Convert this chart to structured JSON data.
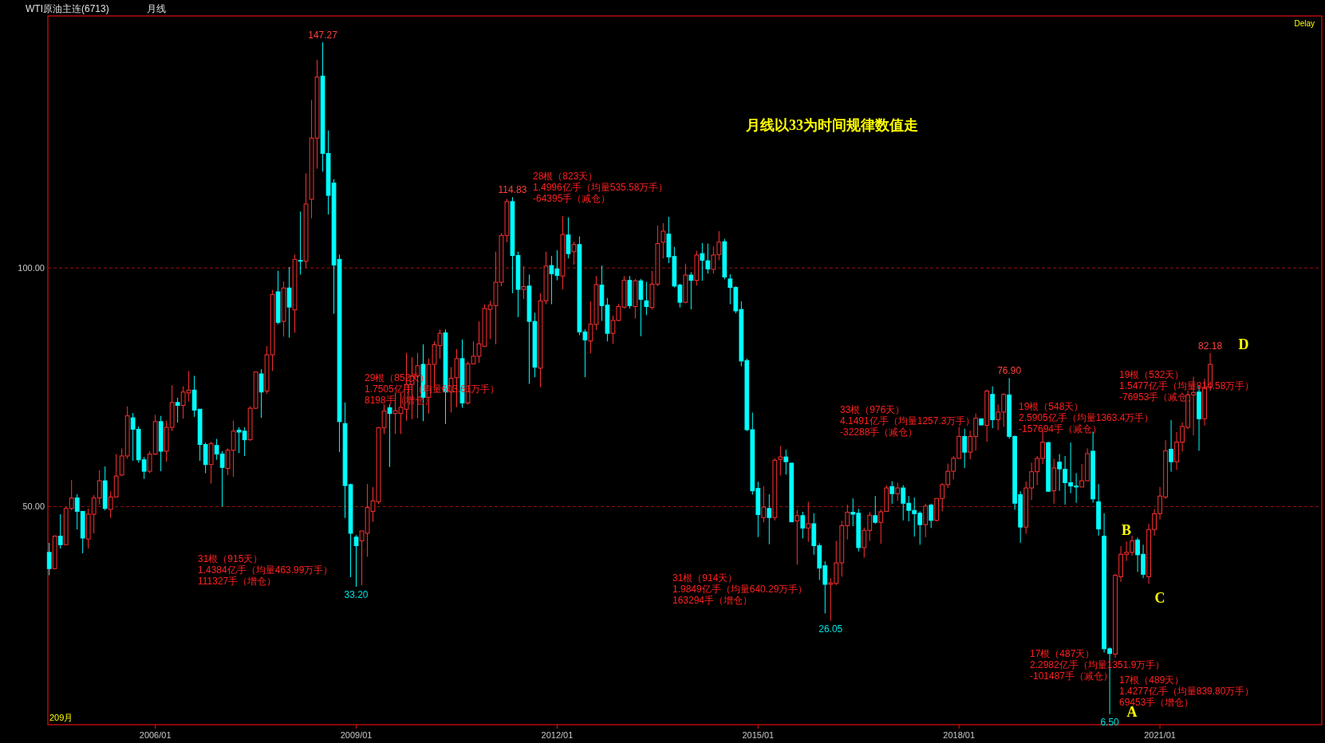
{
  "chart_data": {
    "type": "candlestick",
    "title": "WTI原油主连(6713)",
    "subtitle": "月线",
    "x": [
      "2004-06",
      "2004-07",
      "2004-08",
      "2004-09",
      "2004-10",
      "2004-11",
      "2004-12",
      "2005-01",
      "2005-02",
      "2005-03",
      "2005-04",
      "2005-05",
      "2005-06",
      "2005-07",
      "2005-08",
      "2005-09",
      "2005-10",
      "2005-11",
      "2005-12",
      "2006-01",
      "2006-02",
      "2006-03",
      "2006-04",
      "2006-05",
      "2006-06",
      "2006-07",
      "2006-08",
      "2006-09",
      "2006-10",
      "2006-11",
      "2006-12",
      "2007-01",
      "2007-02",
      "2007-03",
      "2007-04",
      "2007-05",
      "2007-06",
      "2007-07",
      "2007-08",
      "2007-09",
      "2007-10",
      "2007-11",
      "2007-12",
      "2008-01",
      "2008-02",
      "2008-03",
      "2008-04",
      "2008-05",
      "2008-06",
      "2008-07",
      "2008-08",
      "2008-09",
      "2008-10",
      "2008-11",
      "2008-12",
      "2009-01",
      "2009-02",
      "2009-03",
      "2009-04",
      "2009-05",
      "2009-06",
      "2009-07",
      "2009-08",
      "2009-09",
      "2009-10",
      "2009-11",
      "2009-12",
      "2010-01",
      "2010-02",
      "2010-03",
      "2010-04",
      "2010-05",
      "2010-06",
      "2010-07",
      "2010-08",
      "2010-09",
      "2010-10",
      "2010-11",
      "2010-12",
      "2011-01",
      "2011-02",
      "2011-03",
      "2011-04",
      "2011-05",
      "2011-06",
      "2011-07",
      "2011-08",
      "2011-09",
      "2011-10",
      "2011-11",
      "2011-12",
      "2012-01",
      "2012-02",
      "2012-03",
      "2012-04",
      "2012-05",
      "2012-06",
      "2012-07",
      "2012-08",
      "2012-09",
      "2012-10",
      "2012-11",
      "2012-12",
      "2013-01",
      "2013-02",
      "2013-03",
      "2013-04",
      "2013-05",
      "2013-06",
      "2013-07",
      "2013-08",
      "2013-09",
      "2013-10",
      "2013-11",
      "2013-12",
      "2014-01",
      "2014-02",
      "2014-03",
      "2014-04",
      "2014-05",
      "2014-06",
      "2014-07",
      "2014-08",
      "2014-09",
      "2014-10",
      "2014-11",
      "2014-12",
      "2015-01",
      "2015-02",
      "2015-03",
      "2015-04",
      "2015-05",
      "2015-06",
      "2015-07",
      "2015-08",
      "2015-09",
      "2015-10",
      "2015-11",
      "2015-12",
      "2016-01",
      "2016-02",
      "2016-03",
      "2016-04",
      "2016-05",
      "2016-06",
      "2016-07",
      "2016-08",
      "2016-09",
      "2016-10",
      "2016-11",
      "2016-12",
      "2017-01",
      "2017-02",
      "2017-03",
      "2017-04",
      "2017-05",
      "2017-06",
      "2017-07",
      "2017-08",
      "2017-09",
      "2017-10",
      "2017-11",
      "2017-12",
      "2018-01",
      "2018-02",
      "2018-03",
      "2018-04",
      "2018-05",
      "2018-06",
      "2018-07",
      "2018-08",
      "2018-09",
      "2018-10",
      "2018-11",
      "2018-12",
      "2019-01",
      "2019-02",
      "2019-03",
      "2019-04",
      "2019-05",
      "2019-06",
      "2019-07",
      "2019-08",
      "2019-09",
      "2019-10",
      "2019-11",
      "2019-12",
      "2020-01",
      "2020-02",
      "2020-03",
      "2020-04",
      "2020-05",
      "2020-06",
      "2020-07",
      "2020-08",
      "2020-09",
      "2020-10",
      "2020-11",
      "2020-12",
      "2021-01",
      "2021-02",
      "2021-03",
      "2021-04",
      "2021-05",
      "2021-06",
      "2021-07",
      "2021-08",
      "2021-09",
      "2021-10"
    ],
    "ohlc": [
      [
        40.4,
        42.4,
        35.6,
        37.0
      ],
      [
        37.0,
        44.0,
        36.8,
        43.8
      ],
      [
        43.8,
        48.4,
        41.2,
        42.0
      ],
      [
        42.0,
        50.0,
        42.0,
        49.6
      ],
      [
        49.6,
        55.6,
        49.2,
        51.8
      ],
      [
        51.8,
        52.6,
        45.2,
        49.0
      ],
      [
        49.0,
        49.0,
        40.2,
        43.4
      ],
      [
        43.2,
        49.6,
        41.2,
        48.4
      ],
      [
        48.4,
        52.4,
        44.4,
        51.8
      ],
      [
        51.8,
        57.6,
        50.4,
        55.4
      ],
      [
        55.4,
        58.4,
        49.2,
        49.6
      ],
      [
        49.4,
        53.2,
        47.6,
        52.0
      ],
      [
        52.0,
        61.0,
        52.0,
        56.4
      ],
      [
        56.6,
        62.2,
        56.4,
        60.6
      ],
      [
        60.6,
        71.0,
        60.0,
        69.0
      ],
      [
        68.6,
        69.6,
        59.6,
        66.2
      ],
      [
        66.2,
        66.8,
        59.2,
        59.8
      ],
      [
        59.8,
        60.4,
        55.8,
        57.4
      ],
      [
        57.4,
        61.6,
        57.0,
        61.0
      ],
      [
        61.0,
        69.2,
        60.8,
        67.8
      ],
      [
        67.8,
        69.0,
        57.4,
        61.6
      ],
      [
        61.6,
        68.0,
        59.4,
        66.6
      ],
      [
        66.6,
        75.4,
        65.8,
        71.8
      ],
      [
        71.8,
        72.8,
        67.6,
        71.2
      ],
      [
        71.2,
        75.2,
        68.4,
        74.0
      ],
      [
        73.8,
        78.4,
        72.0,
        74.4
      ],
      [
        74.4,
        77.4,
        68.8,
        70.2
      ],
      [
        70.4,
        70.4,
        59.6,
        63.0
      ],
      [
        63.0,
        63.4,
        57.0,
        58.8
      ],
      [
        58.8,
        63.6,
        54.8,
        63.2
      ],
      [
        62.8,
        64.2,
        59.8,
        61.0
      ],
      [
        61.0,
        61.6,
        50.0,
        58.2
      ],
      [
        58.0,
        62.2,
        56.6,
        61.8
      ],
      [
        61.8,
        68.0,
        56.2,
        65.8
      ],
      [
        66.0,
        66.6,
        61.2,
        65.6
      ],
      [
        65.8,
        66.6,
        60.6,
        64.0
      ],
      [
        64.0,
        71.0,
        63.8,
        70.6
      ],
      [
        70.6,
        78.2,
        70.4,
        78.2
      ],
      [
        77.8,
        78.8,
        68.6,
        74.0
      ],
      [
        74.2,
        83.6,
        73.6,
        81.8
      ],
      [
        81.8,
        95.4,
        78.4,
        94.4
      ],
      [
        95.0,
        99.4,
        88.2,
        88.6
      ],
      [
        88.8,
        97.2,
        85.6,
        95.8
      ],
      [
        95.8,
        100.2,
        85.4,
        91.8
      ],
      [
        91.2,
        102.8,
        86.4,
        101.8
      ],
      [
        101.6,
        111.8,
        98.6,
        101.4
      ],
      [
        101.4,
        119.8,
        100.0,
        113.4
      ],
      [
        114.4,
        135.2,
        110.4,
        127.2
      ],
      [
        127.2,
        143.6,
        120.8,
        140.0
      ],
      [
        140.2,
        147.27,
        120.2,
        124.0
      ],
      [
        124.0,
        128.8,
        111.2,
        115.2
      ],
      [
        117.8,
        118.6,
        90.4,
        100.6
      ],
      [
        101.8,
        102.8,
        61.4,
        67.8
      ],
      [
        67.4,
        71.8,
        47.6,
        54.4
      ],
      [
        54.6,
        54.8,
        35.2,
        44.4
      ],
      [
        43.6,
        44.0,
        33.2,
        41.8
      ],
      [
        42.8,
        44.9,
        33.5,
        44.9
      ],
      [
        44.4,
        54.7,
        39.5,
        49.8
      ],
      [
        49.0,
        54.1,
        46.8,
        51.2
      ],
      [
        51.0,
        66.7,
        50.5,
        66.5
      ],
      [
        66.5,
        71.4,
        65.2,
        70.0
      ],
      [
        70.7,
        71.4,
        58.3,
        69.5
      ],
      [
        69.5,
        73.8,
        65.2,
        70.1
      ],
      [
        69.5,
        73.8,
        65.2,
        70.8
      ],
      [
        70.4,
        82.2,
        68.0,
        75.6
      ],
      [
        75.6,
        81.3,
        68.3,
        77.4
      ],
      [
        77.4,
        82.2,
        68.5,
        79.5
      ],
      [
        79.8,
        84.0,
        67.9,
        72.9
      ],
      [
        72.9,
        81.0,
        69.5,
        79.8
      ],
      [
        79.8,
        84.6,
        75.0,
        83.9
      ],
      [
        83.7,
        87.1,
        81.0,
        86.3
      ],
      [
        86.4,
        87.1,
        67.3,
        74.0
      ],
      [
        74.0,
        79.2,
        69.7,
        76.9
      ],
      [
        77.0,
        83.0,
        70.8,
        81.0
      ],
      [
        81.0,
        85.0,
        70.7,
        71.7
      ],
      [
        71.7,
        80.4,
        71.4,
        79.9
      ],
      [
        79.9,
        84.6,
        79.8,
        81.5
      ],
      [
        81.5,
        88.8,
        80.1,
        84.1
      ],
      [
        83.6,
        92.4,
        83.4,
        91.5
      ],
      [
        91.3,
        93.1,
        85.1,
        92.2
      ],
      [
        92.1,
        103.4,
        84.0,
        97.0
      ],
      [
        97.0,
        107.3,
        96.2,
        106.8
      ],
      [
        106.8,
        114.5,
        105.4,
        113.9
      ],
      [
        113.9,
        114.83,
        94.7,
        102.6
      ],
      [
        102.6,
        103.4,
        89.7,
        95.5
      ],
      [
        95.5,
        100.4,
        93.5,
        96.1
      ],
      [
        96.2,
        98.6,
        75.7,
        88.8
      ],
      [
        88.8,
        90.6,
        77.1,
        79.2
      ],
      [
        79.0,
        94.7,
        75.0,
        93.1
      ],
      [
        93.1,
        103.4,
        92.4,
        100.4
      ],
      [
        100.5,
        102.5,
        92.4,
        98.8
      ],
      [
        99.8,
        103.7,
        97.4,
        98.4
      ],
      [
        98.3,
        110.9,
        95.5,
        107.0
      ],
      [
        106.9,
        110.6,
        102.0,
        103.0
      ],
      [
        103.4,
        105.5,
        100.7,
        104.9
      ],
      [
        104.9,
        106.6,
        85.9,
        86.6
      ],
      [
        86.6,
        87.1,
        77.1,
        84.9
      ],
      [
        84.7,
        93.0,
        82.1,
        88.2
      ],
      [
        88.2,
        98.3,
        87.0,
        96.5
      ],
      [
        96.4,
        100.5,
        88.9,
        92.1
      ],
      [
        92.2,
        93.7,
        84.6,
        86.3
      ],
      [
        86.3,
        90.0,
        84.1,
        89.0
      ],
      [
        89.0,
        92.5,
        88.8,
        91.9
      ],
      [
        91.8,
        98.3,
        91.5,
        97.4
      ],
      [
        97.4,
        98.3,
        91.5,
        92.1
      ],
      [
        91.9,
        97.7,
        89.4,
        97.3
      ],
      [
        97.3,
        97.7,
        85.7,
        93.4
      ],
      [
        93.1,
        97.1,
        90.1,
        91.9
      ],
      [
        91.7,
        99.4,
        91.3,
        96.6
      ],
      [
        96.6,
        108.9,
        96.2,
        105.1
      ],
      [
        105.4,
        109.4,
        102.0,
        107.7
      ],
      [
        107.1,
        110.7,
        101.0,
        102.3
      ],
      [
        102.4,
        104.4,
        95.9,
        96.2
      ],
      [
        96.4,
        96.7,
        91.7,
        92.8
      ],
      [
        92.8,
        100.9,
        92.6,
        98.5
      ],
      [
        98.5,
        99.1,
        91.3,
        97.4
      ],
      [
        97.4,
        103.6,
        96.3,
        102.7
      ],
      [
        103.0,
        105.2,
        97.3,
        101.6
      ],
      [
        101.5,
        105.1,
        98.8,
        99.8
      ],
      [
        99.7,
        104.5,
        98.8,
        102.7
      ],
      [
        102.8,
        107.7,
        101.6,
        105.4
      ],
      [
        105.5,
        106.1,
        97.6,
        98.1
      ],
      [
        97.7,
        98.7,
        92.4,
        95.9
      ],
      [
        95.9,
        96.2,
        90.5,
        91.0
      ],
      [
        91.3,
        93.0,
        79.4,
        80.5
      ],
      [
        80.6,
        81.0,
        65.8,
        66.1
      ],
      [
        66.1,
        69.7,
        52.5,
        53.3
      ],
      [
        53.8,
        55.2,
        43.6,
        48.3
      ],
      [
        47.7,
        54.3,
        46.7,
        49.9
      ],
      [
        49.6,
        52.6,
        42.1,
        47.7
      ],
      [
        47.7,
        60.1,
        47.1,
        59.7
      ],
      [
        59.9,
        62.7,
        56.5,
        60.4
      ],
      [
        60.4,
        61.9,
        56.7,
        59.4
      ],
      [
        59.1,
        59.1,
        46.8,
        46.8
      ],
      [
        47.0,
        49.3,
        37.8,
        48.1
      ],
      [
        48.1,
        48.9,
        43.3,
        45.5
      ],
      [
        45.5,
        51.0,
        42.6,
        46.4
      ],
      [
        46.4,
        48.6,
        39.9,
        41.8
      ],
      [
        41.8,
        42.3,
        34.6,
        37.1
      ],
      [
        37.6,
        38.5,
        27.6,
        33.7
      ],
      [
        33.7,
        35.0,
        26.05,
        34.0
      ],
      [
        33.9,
        42.8,
        33.5,
        38.2
      ],
      [
        38.2,
        47.0,
        35.3,
        46.0
      ],
      [
        46.0,
        50.4,
        43.1,
        48.8
      ],
      [
        48.8,
        51.7,
        45.9,
        48.4
      ],
      [
        48.6,
        49.5,
        40.6,
        41.4
      ],
      [
        41.4,
        45.6,
        39.3,
        45.0
      ],
      [
        45.0,
        48.9,
        42.8,
        48.2
      ],
      [
        48.1,
        52.2,
        46.4,
        46.7
      ],
      [
        46.7,
        49.4,
        42.2,
        48.9
      ],
      [
        49.0,
        54.5,
        48.9,
        53.9
      ],
      [
        54.2,
        55.3,
        50.6,
        52.7
      ],
      [
        52.7,
        55.0,
        51.2,
        53.9
      ],
      [
        53.9,
        54.5,
        47.1,
        50.7
      ],
      [
        50.7,
        52.2,
        46.9,
        49.2
      ],
      [
        49.2,
        51.9,
        43.7,
        48.5
      ],
      [
        48.6,
        49.0,
        42.0,
        46.2
      ],
      [
        46.2,
        50.6,
        43.6,
        50.1
      ],
      [
        50.3,
        50.6,
        45.5,
        47.1
      ],
      [
        47.1,
        51.7,
        46.9,
        51.7
      ],
      [
        51.7,
        54.9,
        49.0,
        54.6
      ],
      [
        54.6,
        59.0,
        53.9,
        57.4
      ],
      [
        57.4,
        60.6,
        55.7,
        60.1
      ],
      [
        60.1,
        66.7,
        60.0,
        64.7
      ],
      [
        64.7,
        66.3,
        58.1,
        61.4
      ],
      [
        61.4,
        65.9,
        59.9,
        64.7
      ],
      [
        64.7,
        69.5,
        61.7,
        68.5
      ],
      [
        68.4,
        68.4,
        67.0,
        67.1
      ],
      [
        67.0,
        74.5,
        63.6,
        74.2
      ],
      [
        73.5,
        75.2,
        66.4,
        68.2
      ],
      [
        68.2,
        71.4,
        66.0,
        69.8
      ],
      [
        69.8,
        73.8,
        66.7,
        73.5
      ],
      [
        73.4,
        76.9,
        64.2,
        64.7
      ],
      [
        64.7,
        64.9,
        49.3,
        50.7
      ],
      [
        52.5,
        53.2,
        42.4,
        45.7
      ],
      [
        45.7,
        55.3,
        44.3,
        53.9
      ],
      [
        53.9,
        59.2,
        51.4,
        57.3
      ],
      [
        57.3,
        60.6,
        54.5,
        60.1
      ],
      [
        60.1,
        65.9,
        58.9,
        63.5
      ],
      [
        63.4,
        63.6,
        53.1,
        53.2
      ],
      [
        53.3,
        60.0,
        50.6,
        58.1
      ],
      [
        59.3,
        61.0,
        53.3,
        57.9
      ],
      [
        57.8,
        60.6,
        50.4,
        55.0
      ],
      [
        55.0,
        63.4,
        52.8,
        54.3
      ],
      [
        54.3,
        57.0,
        50.8,
        54.1
      ],
      [
        54.1,
        58.9,
        54.1,
        55.4
      ],
      [
        55.4,
        62.2,
        55.3,
        61.1
      ],
      [
        61.6,
        65.7,
        50.8,
        51.6
      ],
      [
        51.0,
        54.7,
        43.9,
        45.3
      ],
      [
        43.8,
        48.6,
        19.4,
        20.2
      ],
      [
        20.2,
        20.5,
        6.5,
        19.2
      ],
      [
        19.1,
        35.9,
        18.3,
        35.6
      ],
      [
        35.3,
        41.7,
        34.2,
        40.0
      ],
      [
        40.0,
        42.7,
        38.6,
        40.4
      ],
      [
        40.4,
        43.9,
        39.7,
        42.8
      ],
      [
        43.0,
        43.5,
        36.3,
        39.9
      ],
      [
        40.0,
        42.0,
        35.0,
        35.8
      ],
      [
        35.3,
        46.4,
        33.8,
        45.2
      ],
      [
        45.2,
        49.5,
        43.9,
        48.5
      ],
      [
        48.5,
        54.1,
        47.3,
        52.2
      ],
      [
        52.0,
        63.9,
        51.6,
        61.7
      ],
      [
        62.0,
        68.1,
        57.3,
        59.4
      ],
      [
        59.4,
        65.6,
        57.7,
        63.5
      ],
      [
        63.5,
        67.6,
        61.5,
        66.8
      ],
      [
        66.6,
        74.3,
        66.2,
        73.4
      ],
      [
        73.4,
        77.2,
        64.9,
        73.9
      ],
      [
        74.0,
        75.4,
        61.7,
        68.4
      ],
      [
        68.4,
        76.8,
        67.0,
        75.0
      ],
      [
        75.0,
        82.18,
        74.3,
        79.8
      ]
    ],
    "colors": [
      "#00ffff",
      "#ff3232",
      "#00ffff",
      "#ff3232",
      "#ff3232",
      "#00ffff",
      "#00ffff",
      "#ff3232",
      "#ff3232",
      "#ff3232",
      "#00ffff",
      "#ff3232",
      "#ff3232",
      "#ff3232",
      "#ff3232",
      "#00ffff",
      "#00ffff",
      "#00ffff",
      "#ff3232",
      "#ff3232",
      "#00ffff",
      "#ff3232",
      "#ff3232",
      "#00ffff",
      "#ff3232",
      "#ff3232",
      "#00ffff",
      "#00ffff",
      "#00ffff",
      "#ff3232",
      "#00ffff",
      "#00ffff",
      "#ff3232",
      "#ff3232",
      "#00ffff",
      "#00ffff",
      "#ff3232",
      "#ff3232",
      "#00ffff",
      "#ff3232",
      "#ff3232",
      "#00ffff",
      "#ff3232",
      "#00ffff",
      "#ff3232",
      "#00ffff",
      "#ff3232",
      "#ff3232",
      "#ff3232",
      "#00ffff",
      "#00ffff",
      "#00ffff",
      "#00ffff",
      "#00ffff",
      "#00ffff",
      "#00ffff",
      "#ff3232",
      "#ff3232",
      "#ff3232",
      "#ff3232",
      "#ff3232",
      "#00ffff",
      "#ff3232",
      "#ff3232",
      "#ff3232",
      "#ff3232",
      "#ff3232",
      "#00ffff",
      "#ff3232",
      "#ff3232",
      "#ff3232",
      "#00ffff",
      "#ff3232",
      "#ff3232",
      "#00ffff",
      "#ff3232",
      "#ff3232",
      "#ff3232",
      "#ff3232",
      "#ff3232",
      "#ff3232",
      "#ff3232",
      "#ff3232",
      "#00ffff",
      "#00ffff",
      "#ff3232",
      "#00ffff",
      "#00ffff",
      "#ff3232",
      "#ff3232",
      "#00ffff",
      "#00ffff",
      "#ff3232",
      "#00ffff",
      "#ff3232",
      "#00ffff",
      "#00ffff",
      "#ff3232",
      "#ff3232",
      "#00ffff",
      "#00ffff",
      "#ff3232",
      "#ff3232",
      "#ff3232",
      "#00ffff",
      "#ff3232",
      "#00ffff",
      "#00ffff",
      "#ff3232",
      "#ff3232",
      "#ff3232",
      "#00ffff",
      "#00ffff",
      "#00ffff",
      "#ff3232",
      "#00ffff",
      "#ff3232",
      "#00ffff",
      "#00ffff",
      "#ff3232",
      "#ff3232",
      "#00ffff",
      "#00ffff",
      "#00ffff",
      "#00ffff",
      "#00ffff",
      "#00ffff",
      "#00ffff",
      "#ff3232",
      "#00ffff",
      "#ff3232",
      "#ff3232",
      "#00ffff",
      "#00ffff",
      "#ff3232",
      "#00ffff",
      "#ff3232",
      "#00ffff",
      "#00ffff",
      "#00ffff",
      "#ff3232",
      "#ff3232",
      "#ff3232",
      "#ff3232",
      "#00ffff",
      "#00ffff",
      "#ff3232",
      "#ff3232",
      "#00ffff",
      "#ff3232",
      "#ff3232",
      "#00ffff",
      "#ff3232",
      "#00ffff",
      "#00ffff",
      "#00ffff",
      "#00ffff",
      "#ff3232",
      "#00ffff",
      "#ff3232",
      "#ff3232",
      "#ff3232",
      "#ff3232",
      "#ff3232",
      "#00ffff",
      "#ff3232",
      "#ff3232",
      "#00ffff",
      "#ff3232",
      "#00ffff",
      "#ff3232",
      "#ff3232",
      "#00ffff",
      "#00ffff",
      "#00ffff",
      "#ff3232",
      "#ff3232",
      "#ff3232",
      "#ff3232",
      "#00ffff",
      "#ff3232",
      "#00ffff",
      "#00ffff",
      "#00ffff",
      "#00ffff",
      "#ff3232",
      "#ff3232",
      "#00ffff",
      "#00ffff",
      "#00ffff",
      "#00ffff",
      "#ff3232",
      "#ff3232",
      "#ff3232",
      "#ff3232",
      "#00ffff",
      "#00ffff",
      "#ff3232",
      "#ff3232",
      "#ff3232",
      "#ff3232",
      "#00ffff",
      "#ff3232",
      "#ff3232",
      "#ff3232",
      "#ff3232",
      "#00ffff",
      "#ff3232",
      "#ff3232"
    ],
    "xlim": [
      "2004-05-24",
      "2023-06"
    ],
    "ylim": [
      4.3,
      152.8
    ],
    "xticks": [
      {
        "value": "2006-01",
        "label": "2006/01"
      },
      {
        "value": "2009-01",
        "label": "2009/01"
      },
      {
        "value": "2012-01",
        "label": "2012/01"
      },
      {
        "value": "2015-01",
        "label": "2015/01"
      },
      {
        "value": "2018-01",
        "label": "2018/01"
      },
      {
        "value": "2021-01",
        "label": "2021/01"
      }
    ],
    "yticks": [
      {
        "value": 50,
        "label": "50.00"
      },
      {
        "value": 100,
        "label": "100.00"
      }
    ],
    "grid": "y",
    "annotations": [
      "月线以33为时间规律数值走",
      "Delay",
      "209月",
      {
        "text": "147.27",
        "x": "2008-07",
        "y": 147.27
      },
      {
        "text": "114.83",
        "x": "2011-05",
        "y": 114.83
      },
      {
        "text": "33.20",
        "x": "2009-01",
        "y": 33.2
      },
      {
        "text": "26.05",
        "x": "2016-02",
        "y": 26.05
      },
      {
        "text": "76.90",
        "x": "2018-10",
        "y": 76.9
      },
      {
        "text": "6.50",
        "x": "2020-04",
        "y": 6.5
      },
      {
        "text": "82.18",
        "x": "2021-10",
        "y": 82.18
      },
      "31根（915天）\n1.4384亿手（均量463.99万手）\n111327手（增仓）",
      "29根（852天）\n1.7505亿手（均量603.61万手）\n8198手（增仓）",
      "28根（823天）\n1.4996亿手（均量535.58万手）\n-64395手（减仓）",
      "31根（914天）\n1.9849亿手（均量640.29万手）\n163294手（增仓）",
      "33根（976天）\n4.1491亿手（均量1257.3万手）\n-32288手（减仓）",
      "19根（548天）\n2.5905亿手（均量1363.4万手）\n-157694手（减仓）",
      "19根（532天）\n1.5477亿手（均量814.58万手）\n-76953手（减仓）",
      "17根（487天）\n2.2982亿手（均量1351.9万手）\n-101487手（减仓）",
      "17根（489天）\n1.4277亿手（均量839.80万手）\n69453手（增仓）",
      "A",
      "B",
      "C",
      "D"
    ]
  }
}
